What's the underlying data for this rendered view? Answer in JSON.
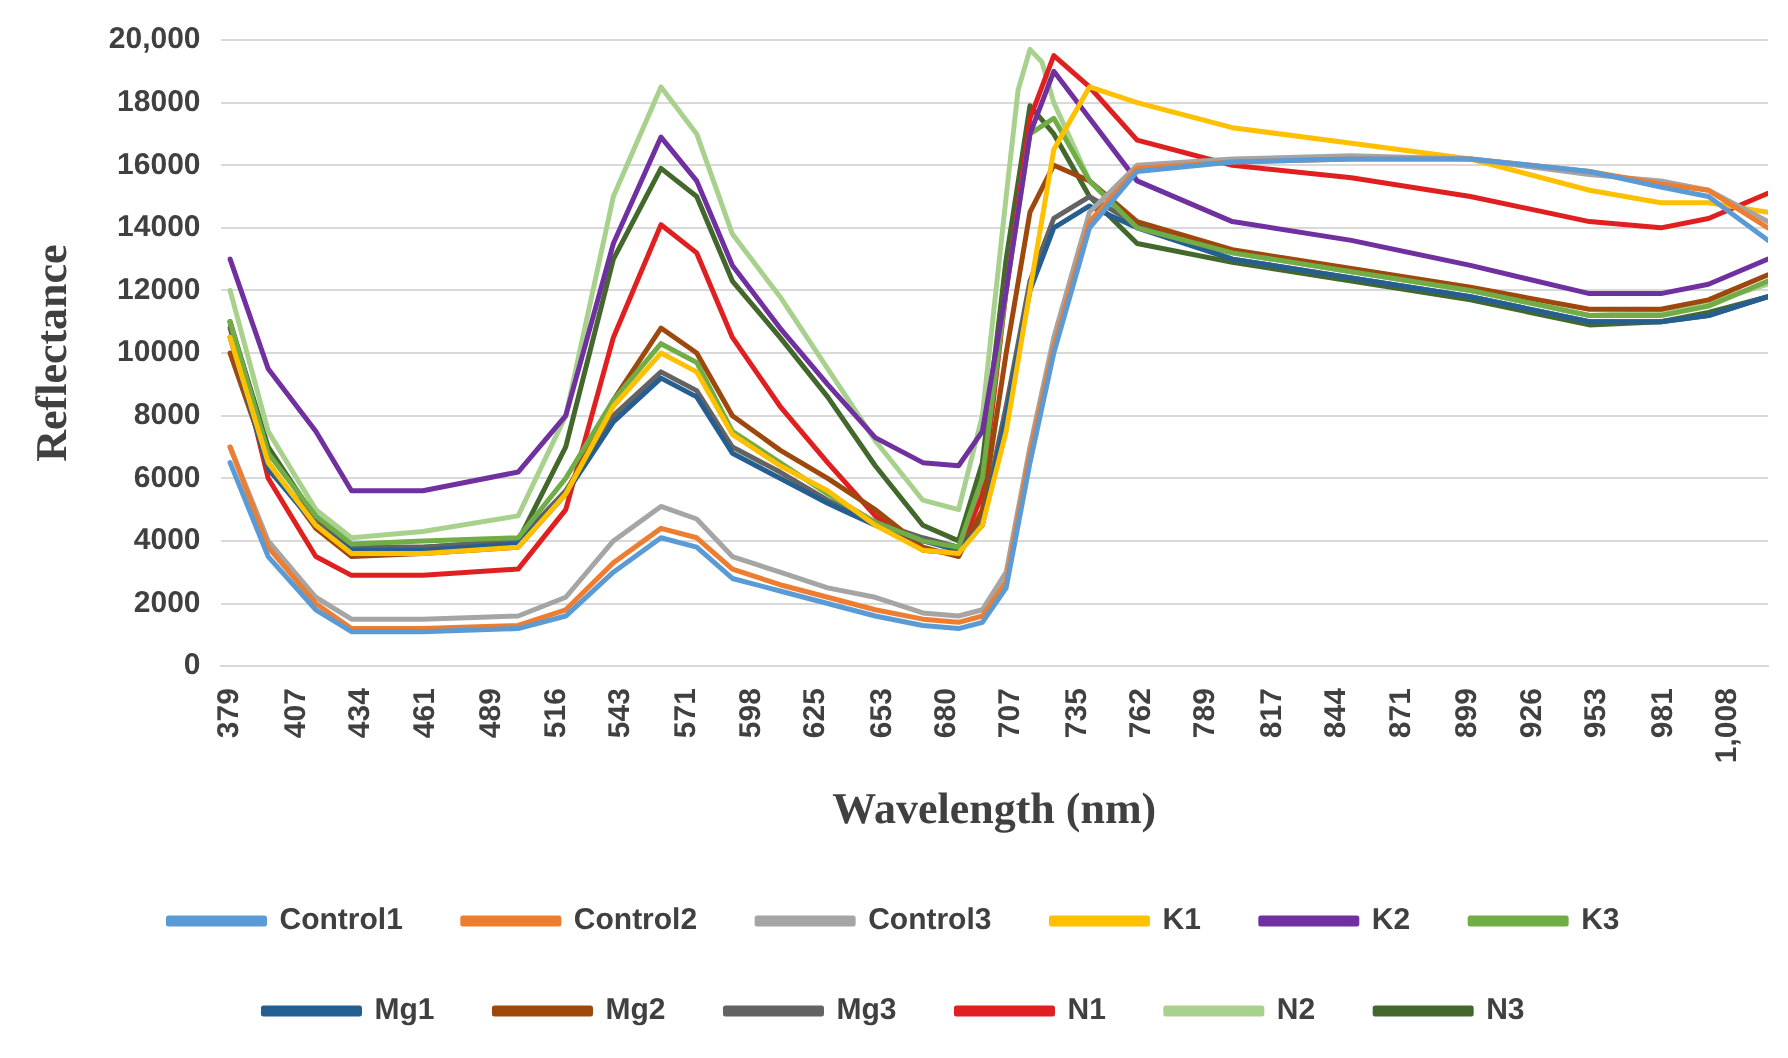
{
  "chart_data": {
    "type": "line",
    "xlabel": "Wavelength (nm)",
    "ylabel": "Reflectance",
    "x": [
      379,
      395,
      415,
      430,
      460,
      500,
      520,
      540,
      560,
      575,
      590,
      610,
      630,
      650,
      670,
      685,
      695,
      705,
      715,
      725,
      740,
      760,
      800,
      850,
      900,
      950,
      980,
      1000,
      1025
    ],
    "xlim": [
      375,
      1025
    ],
    "xticks": [
      379,
      407,
      434,
      461,
      489,
      516,
      543,
      571,
      598,
      625,
      653,
      680,
      707,
      735,
      762,
      789,
      817,
      844,
      871,
      899,
      926,
      953,
      981,
      {
        "value": 1008,
        "label": "1,008"
      }
    ],
    "ylim": [
      0,
      20000
    ],
    "yticks": [
      0,
      2000,
      4000,
      6000,
      8000,
      10000,
      12000,
      14000,
      16000,
      18000,
      {
        "value": 20000,
        "label": "20,000"
      }
    ],
    "grid": "y",
    "legend": "bottom",
    "marker": "none",
    "line_style": "solid",
    "series": [
      {
        "name": "Control1",
        "color": "#5b9bd5",
        "values": [
          6500,
          3500,
          1800,
          1100,
          1100,
          1200,
          1600,
          3000,
          4100,
          3800,
          2800,
          2400,
          2000,
          1600,
          1300,
          1200,
          1400,
          2500,
          6500,
          10000,
          14000,
          15800,
          16100,
          16200,
          16200,
          15800,
          15300,
          15000,
          13600
        ]
      },
      {
        "name": "Control2",
        "color": "#ed7d31",
        "values": [
          7000,
          3800,
          2000,
          1200,
          1200,
          1300,
          1800,
          3300,
          4400,
          4100,
          3100,
          2600,
          2200,
          1800,
          1500,
          1400,
          1600,
          2700,
          6800,
          10200,
          14200,
          15900,
          16100,
          16200,
          16200,
          15800,
          15400,
          15200,
          14000
        ]
      },
      {
        "name": "Control3",
        "color": "#a5a5a5",
        "values": [
          7000,
          4000,
          2200,
          1500,
          1500,
          1600,
          2200,
          4000,
          5100,
          4700,
          3500,
          3000,
          2500,
          2200,
          1700,
          1600,
          1800,
          3000,
          7000,
          10500,
          14500,
          16000,
          16200,
          16300,
          16200,
          15700,
          15500,
          15200,
          14200
        ]
      },
      {
        "name": "K1",
        "color": "#ffc000",
        "values": [
          10500,
          6500,
          4500,
          3600,
          3600,
          3800,
          5500,
          8300,
          10000,
          9400,
          7400,
          6400,
          5600,
          4500,
          3700,
          3600,
          4500,
          7500,
          12000,
          16500,
          18500,
          18000,
          17200,
          16700,
          16200,
          15200,
          14800,
          14800,
          14500
        ]
      },
      {
        "name": "K2",
        "color": "#7030a0",
        "values": [
          13000,
          9500,
          7500,
          5600,
          5600,
          6200,
          8000,
          13500,
          16900,
          15500,
          12800,
          10800,
          9000,
          7300,
          6500,
          6400,
          7500,
          12000,
          17000,
          19000,
          17500,
          15500,
          14200,
          13600,
          12800,
          11900,
          11900,
          12200,
          13000
        ]
      },
      {
        "name": "K3",
        "color": "#70ad47",
        "values": [
          11000,
          6800,
          4800,
          3900,
          4000,
          4100,
          6000,
          8500,
          10300,
          9700,
          7500,
          6500,
          5500,
          4600,
          4000,
          3800,
          6000,
          12000,
          17000,
          17500,
          15500,
          14000,
          13200,
          12600,
          12000,
          11200,
          11200,
          11500,
          12300
        ]
      },
      {
        "name": "Mg1",
        "color": "#255e91",
        "values": [
          10500,
          6300,
          4500,
          3700,
          3700,
          3900,
          5500,
          7800,
          9200,
          8600,
          6800,
          6000,
          5200,
          4500,
          4000,
          3700,
          4500,
          8000,
          12000,
          14000,
          14700,
          14000,
          13000,
          12400,
          11800,
          11000,
          11000,
          11200,
          11800
        ]
      },
      {
        "name": "Mg2",
        "color": "#9e480e",
        "values": [
          10000,
          6500,
          4400,
          3500,
          3600,
          3800,
          5500,
          8500,
          10800,
          10000,
          8000,
          6900,
          6000,
          5000,
          3800,
          3500,
          5000,
          10000,
          14500,
          16000,
          15500,
          14200,
          13300,
          12700,
          12100,
          11400,
          11400,
          11700,
          12500
        ]
      },
      {
        "name": "Mg3",
        "color": "#636363",
        "values": [
          10800,
          6400,
          4600,
          3800,
          3800,
          4000,
          5600,
          8000,
          9400,
          8800,
          7000,
          6200,
          5300,
          4600,
          4100,
          3800,
          4700,
          8300,
          12300,
          14300,
          15000,
          14100,
          13000,
          12400,
          11800,
          11000,
          11000,
          11200,
          11800
        ]
      },
      {
        "name": "N1",
        "color": "#e02020",
        "values": [
          11000,
          6000,
          3500,
          2900,
          2900,
          3100,
          5000,
          10500,
          14100,
          13200,
          10500,
          8300,
          6500,
          4800,
          3700,
          3600,
          5500,
          12000,
          17500,
          19500,
          18500,
          16800,
          16000,
          15600,
          15000,
          14200,
          14000,
          14300,
          15100
        ]
      },
      {
        "name": "N2",
        "color": "#a9d18e",
        "x": [
          379,
          395,
          415,
          430,
          460,
          500,
          520,
          540,
          560,
          575,
          590,
          610,
          630,
          650,
          670,
          685,
          695,
          705,
          710,
          715,
          720,
          725,
          740,
          760,
          800,
          850,
          900,
          950,
          980,
          1000,
          1025
        ],
        "values": [
          12000,
          7500,
          5000,
          4100,
          4300,
          4800,
          8000,
          15000,
          18500,
          17000,
          13800,
          11800,
          9500,
          7200,
          5300,
          5000,
          8000,
          15000,
          18400,
          19700,
          19300,
          18000,
          15500,
          14000,
          13200,
          12600,
          12000,
          11200,
          11300,
          11600,
          12200
        ]
      },
      {
        "name": "N3",
        "color": "#43682b",
        "values": [
          11000,
          7000,
          4700,
          3800,
          3800,
          4000,
          7000,
          13000,
          15900,
          15000,
          12300,
          10500,
          8600,
          6400,
          4500,
          4000,
          6500,
          13000,
          17900,
          17000,
          15000,
          13500,
          12900,
          12300,
          11700,
          10900,
          11000,
          11300,
          11800
        ]
      }
    ]
  }
}
